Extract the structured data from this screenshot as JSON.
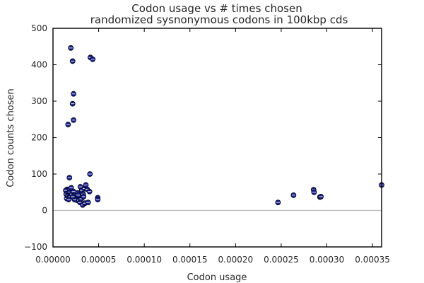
{
  "chart_data": {
    "type": "scatter",
    "title": "Codon usage vs # times chosen",
    "subtitle": "randomized sysnonymous codons in 100kbp cds",
    "xlabel": "Codon usage",
    "ylabel": "Codon counts chosen",
    "xlim": [
      0,
      0.00036
    ],
    "ylim": [
      -100,
      500
    ],
    "x_ticks": [
      0,
      5e-05,
      0.0001,
      0.00015,
      0.0002,
      0.00025,
      0.0003,
      0.00035
    ],
    "x_tick_labels": [
      "0.00000",
      "0.00005",
      "0.00010",
      "0.00015",
      "0.00020",
      "0.00025",
      "0.00030",
      "0.00035"
    ],
    "y_ticks": [
      -100,
      0,
      100,
      200,
      300,
      400,
      500
    ],
    "y_tick_labels": [
      "−100",
      "0",
      "100",
      "200",
      "300",
      "400",
      "500"
    ],
    "grid": false,
    "zero_line": true,
    "marker_color": "#151fa0",
    "series": [
      {
        "points": [
          [
            1.95e-05,
            446
          ],
          [
            2.15e-05,
            410
          ],
          [
            4.1e-05,
            420
          ],
          [
            4.35e-05,
            415
          ],
          [
            2.25e-05,
            320
          ],
          [
            2.15e-05,
            293
          ],
          [
            2.25e-05,
            248
          ],
          [
            1.65e-05,
            236
          ],
          [
            1.8e-05,
            90
          ],
          [
            4.05e-05,
            100
          ],
          [
            1.55e-05,
            58
          ],
          [
            1.4e-05,
            55
          ],
          [
            2e-05,
            62
          ],
          [
            1.75e-05,
            50
          ],
          [
            1.45e-05,
            45
          ],
          [
            1.6e-05,
            40
          ],
          [
            1.85e-05,
            38
          ],
          [
            1.5e-05,
            33
          ],
          [
            1.7e-05,
            30
          ],
          [
            2.05e-05,
            45
          ],
          [
            2.25e-05,
            52
          ],
          [
            2.4e-05,
            42
          ],
          [
            2.55e-05,
            35
          ],
          [
            2.7e-05,
            48
          ],
          [
            2.85e-05,
            40
          ],
          [
            3e-05,
            65
          ],
          [
            3.15e-05,
            55
          ],
          [
            3.3e-05,
            45
          ],
          [
            3.45e-05,
            60
          ],
          [
            3.6e-05,
            70
          ],
          [
            3.75e-05,
            58
          ],
          [
            4e-05,
            52
          ],
          [
            2.65e-05,
            28
          ],
          [
            2.95e-05,
            22
          ],
          [
            3.25e-05,
            15
          ],
          [
            3.5e-05,
            20
          ],
          [
            3.85e-05,
            22
          ],
          [
            2.35e-05,
            30
          ],
          [
            3.1e-05,
            32
          ],
          [
            4.9e-05,
            35
          ],
          [
            4.9e-05,
            30
          ],
          [
            2.15e-05,
            38
          ],
          [
            2.75e-05,
            42
          ],
          [
            3.35e-05,
            38
          ],
          [
            0.0002465,
            22
          ],
          [
            0.0002635,
            42
          ],
          [
            0.0002855,
            57
          ],
          [
            0.000286,
            50
          ],
          [
            0.0002925,
            37
          ],
          [
            0.0002935,
            38
          ],
          [
            0.00036,
            70
          ],
          [
            0.0003615,
            78
          ]
        ]
      }
    ]
  }
}
